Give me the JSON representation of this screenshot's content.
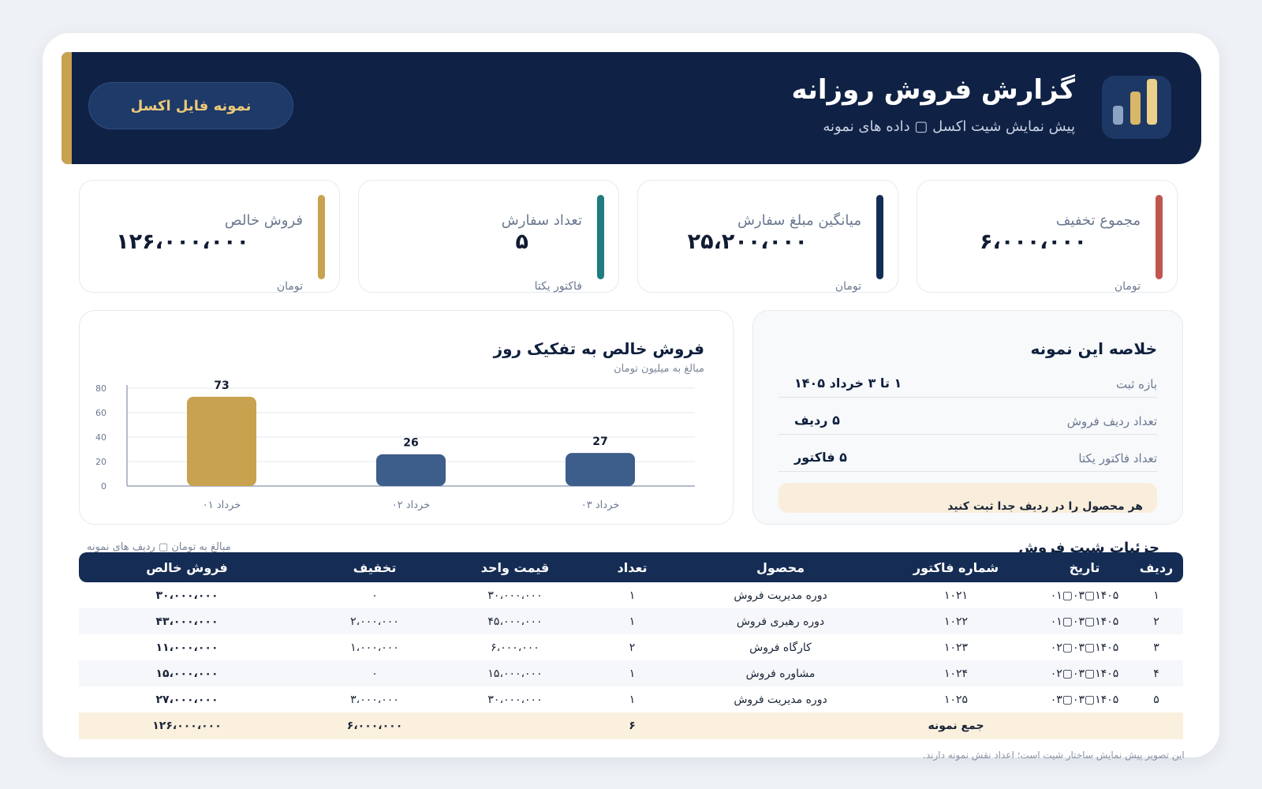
{
  "header": {
    "title": "گزارش فروش روزانه",
    "subtitle": "پیش نمایش شیت اکسل ▢ داده های نمونه",
    "excel_button": "نمونه فایل اکسل"
  },
  "kpis": [
    {
      "label": "مجموع تخفیف",
      "value": "۶،۰۰۰،۰۰۰",
      "unit": "تومان",
      "color": "#c0564e"
    },
    {
      "label": "میانگین مبلغ سفارش",
      "value": "۲۵،۲۰۰،۰۰۰",
      "unit": "تومان",
      "color": "#142d55"
    },
    {
      "label": "تعداد سفارش",
      "value": "۵",
      "unit": "فاکتور یکتا",
      "color": "#1f7c80"
    },
    {
      "label": "فروش خالص",
      "value": "۱۲۶،۰۰۰،۰۰۰",
      "unit": "تومان",
      "color": "#c8a24e"
    }
  ],
  "chart_panel": {
    "title": "فروش خالص به تفکیک روز",
    "subtitle": "مبالغ به میلیون تومان"
  },
  "chart_data": {
    "type": "bar",
    "categories": [
      "۰۱ خرداد",
      "۰۲ خرداد",
      "۰۳ خرداد"
    ],
    "values": [
      73,
      26,
      27
    ],
    "bar_colors": [
      "#c8a24e",
      "#3d5d8a",
      "#3d5d8a"
    ],
    "yticks": [
      0,
      20,
      40,
      60,
      80
    ],
    "ylim": [
      0,
      80
    ],
    "grid": true,
    "title": "فروش خالص به تفکیک روز"
  },
  "summary": {
    "title": "خلاصه این نمونه",
    "rows": [
      {
        "key": "بازه ثبت",
        "value": "۱ تا ۳ خرداد ۱۴۰۵"
      },
      {
        "key": "تعداد ردیف فروش",
        "value": "۵ ردیف"
      },
      {
        "key": "تعداد فاکتور یکتا",
        "value": "۵ فاکتور"
      }
    ],
    "note": "هر محصول را در ردیف جدا ثبت کنید"
  },
  "table": {
    "heading": "جزئیات شیت فروش",
    "caption": "مبالغ به تومان ▢ ردیف های نمونه",
    "columns": [
      "ردیف",
      "تاریخ",
      "شماره فاکتور",
      "محصول",
      "تعداد",
      "قیمت واحد",
      "تخفیف",
      "فروش خالص"
    ],
    "rows": [
      [
        "۱",
        "۱۴۰۵▢۰۳▢۰۱",
        "۱۰۲۱",
        "دوره مدیریت فروش",
        "۱",
        "۳۰،۰۰۰،۰۰۰",
        "۰",
        "۳۰،۰۰۰،۰۰۰"
      ],
      [
        "۲",
        "۱۴۰۵▢۰۳▢۰۱",
        "۱۰۲۲",
        "دوره رهبری فروش",
        "۱",
        "۴۵،۰۰۰،۰۰۰",
        "۲،۰۰۰،۰۰۰",
        "۴۳،۰۰۰،۰۰۰"
      ],
      [
        "۳",
        "۱۴۰۵▢۰۳▢۰۲",
        "۱۰۲۳",
        "کارگاه فروش",
        "۲",
        "۶،۰۰۰،۰۰۰",
        "۱،۰۰۰،۰۰۰",
        "۱۱،۰۰۰،۰۰۰"
      ],
      [
        "۴",
        "۱۴۰۵▢۰۳▢۰۲",
        "۱۰۲۴",
        "مشاوره فروش",
        "۱",
        "۱۵،۰۰۰،۰۰۰",
        "۰",
        "۱۵،۰۰۰،۰۰۰"
      ],
      [
        "۵",
        "۱۴۰۵▢۰۳▢۰۳",
        "۱۰۲۵",
        "دوره مدیریت فروش",
        "۱",
        "۳۰،۰۰۰،۰۰۰",
        "۳،۰۰۰،۰۰۰",
        "۲۷،۰۰۰،۰۰۰"
      ]
    ],
    "total": {
      "label": "جمع نمونه",
      "qty": "۶",
      "discount": "۶،۰۰۰،۰۰۰",
      "net": "۱۲۶،۰۰۰،۰۰۰"
    }
  },
  "footnote": "این تصویر پیش نمایش ساختار شیت است؛ اعداد نقش نمونه دارند."
}
